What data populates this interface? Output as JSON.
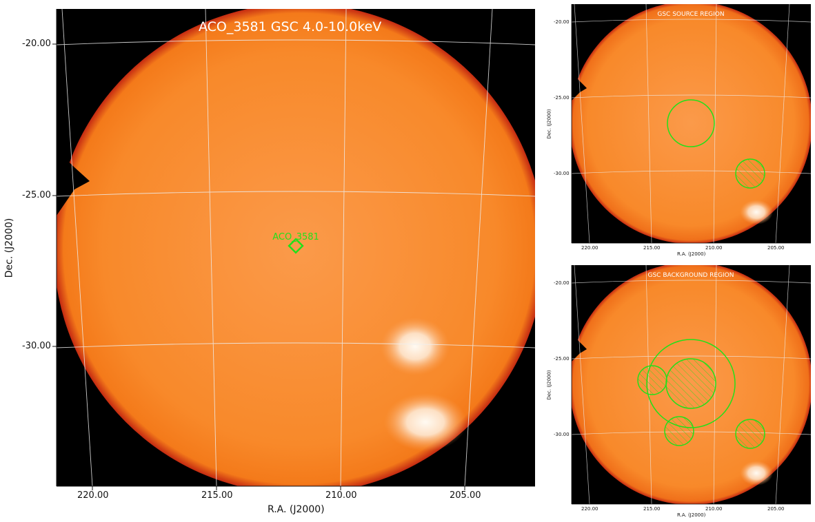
{
  "main": {
    "title": "ACO_3581 GSC 4.0-10.0keV",
    "xlabel": "R.A. (J2000)",
    "ylabel": "Dec. (J2000)",
    "x_ticks": [
      "220.00",
      "215.00",
      "210.00",
      "205.00"
    ],
    "y_ticks": [
      "-20.00",
      "-25.00",
      "-30.00"
    ],
    "source_label": "ACO_3581"
  },
  "source_panel": {
    "title": "GSC SOURCE REGION",
    "xlabel": "R.A. (J2000)",
    "ylabel": "Dec. (J2000)",
    "x_ticks": [
      "220.00",
      "215.00",
      "210.00",
      "205.00"
    ],
    "y_ticks": [
      "-20.00",
      "-25.00",
      "-30.00"
    ]
  },
  "background_panel": {
    "title": "GSC BACKGROUND REGION",
    "xlabel": "R.A. (J2000)",
    "ylabel": "Dec. (J2000)",
    "x_ticks": [
      "220.00",
      "215.00",
      "210.00",
      "205.00"
    ],
    "y_ticks": [
      "-20.00",
      "-25.00",
      "-30.00"
    ]
  },
  "colors": {
    "map_fill": "#f7841f",
    "map_edge": "#d8301a",
    "background": "#000000",
    "region": "#22e01a",
    "grid": "#e8e8e8",
    "bright_spot": "#fff4e8"
  }
}
